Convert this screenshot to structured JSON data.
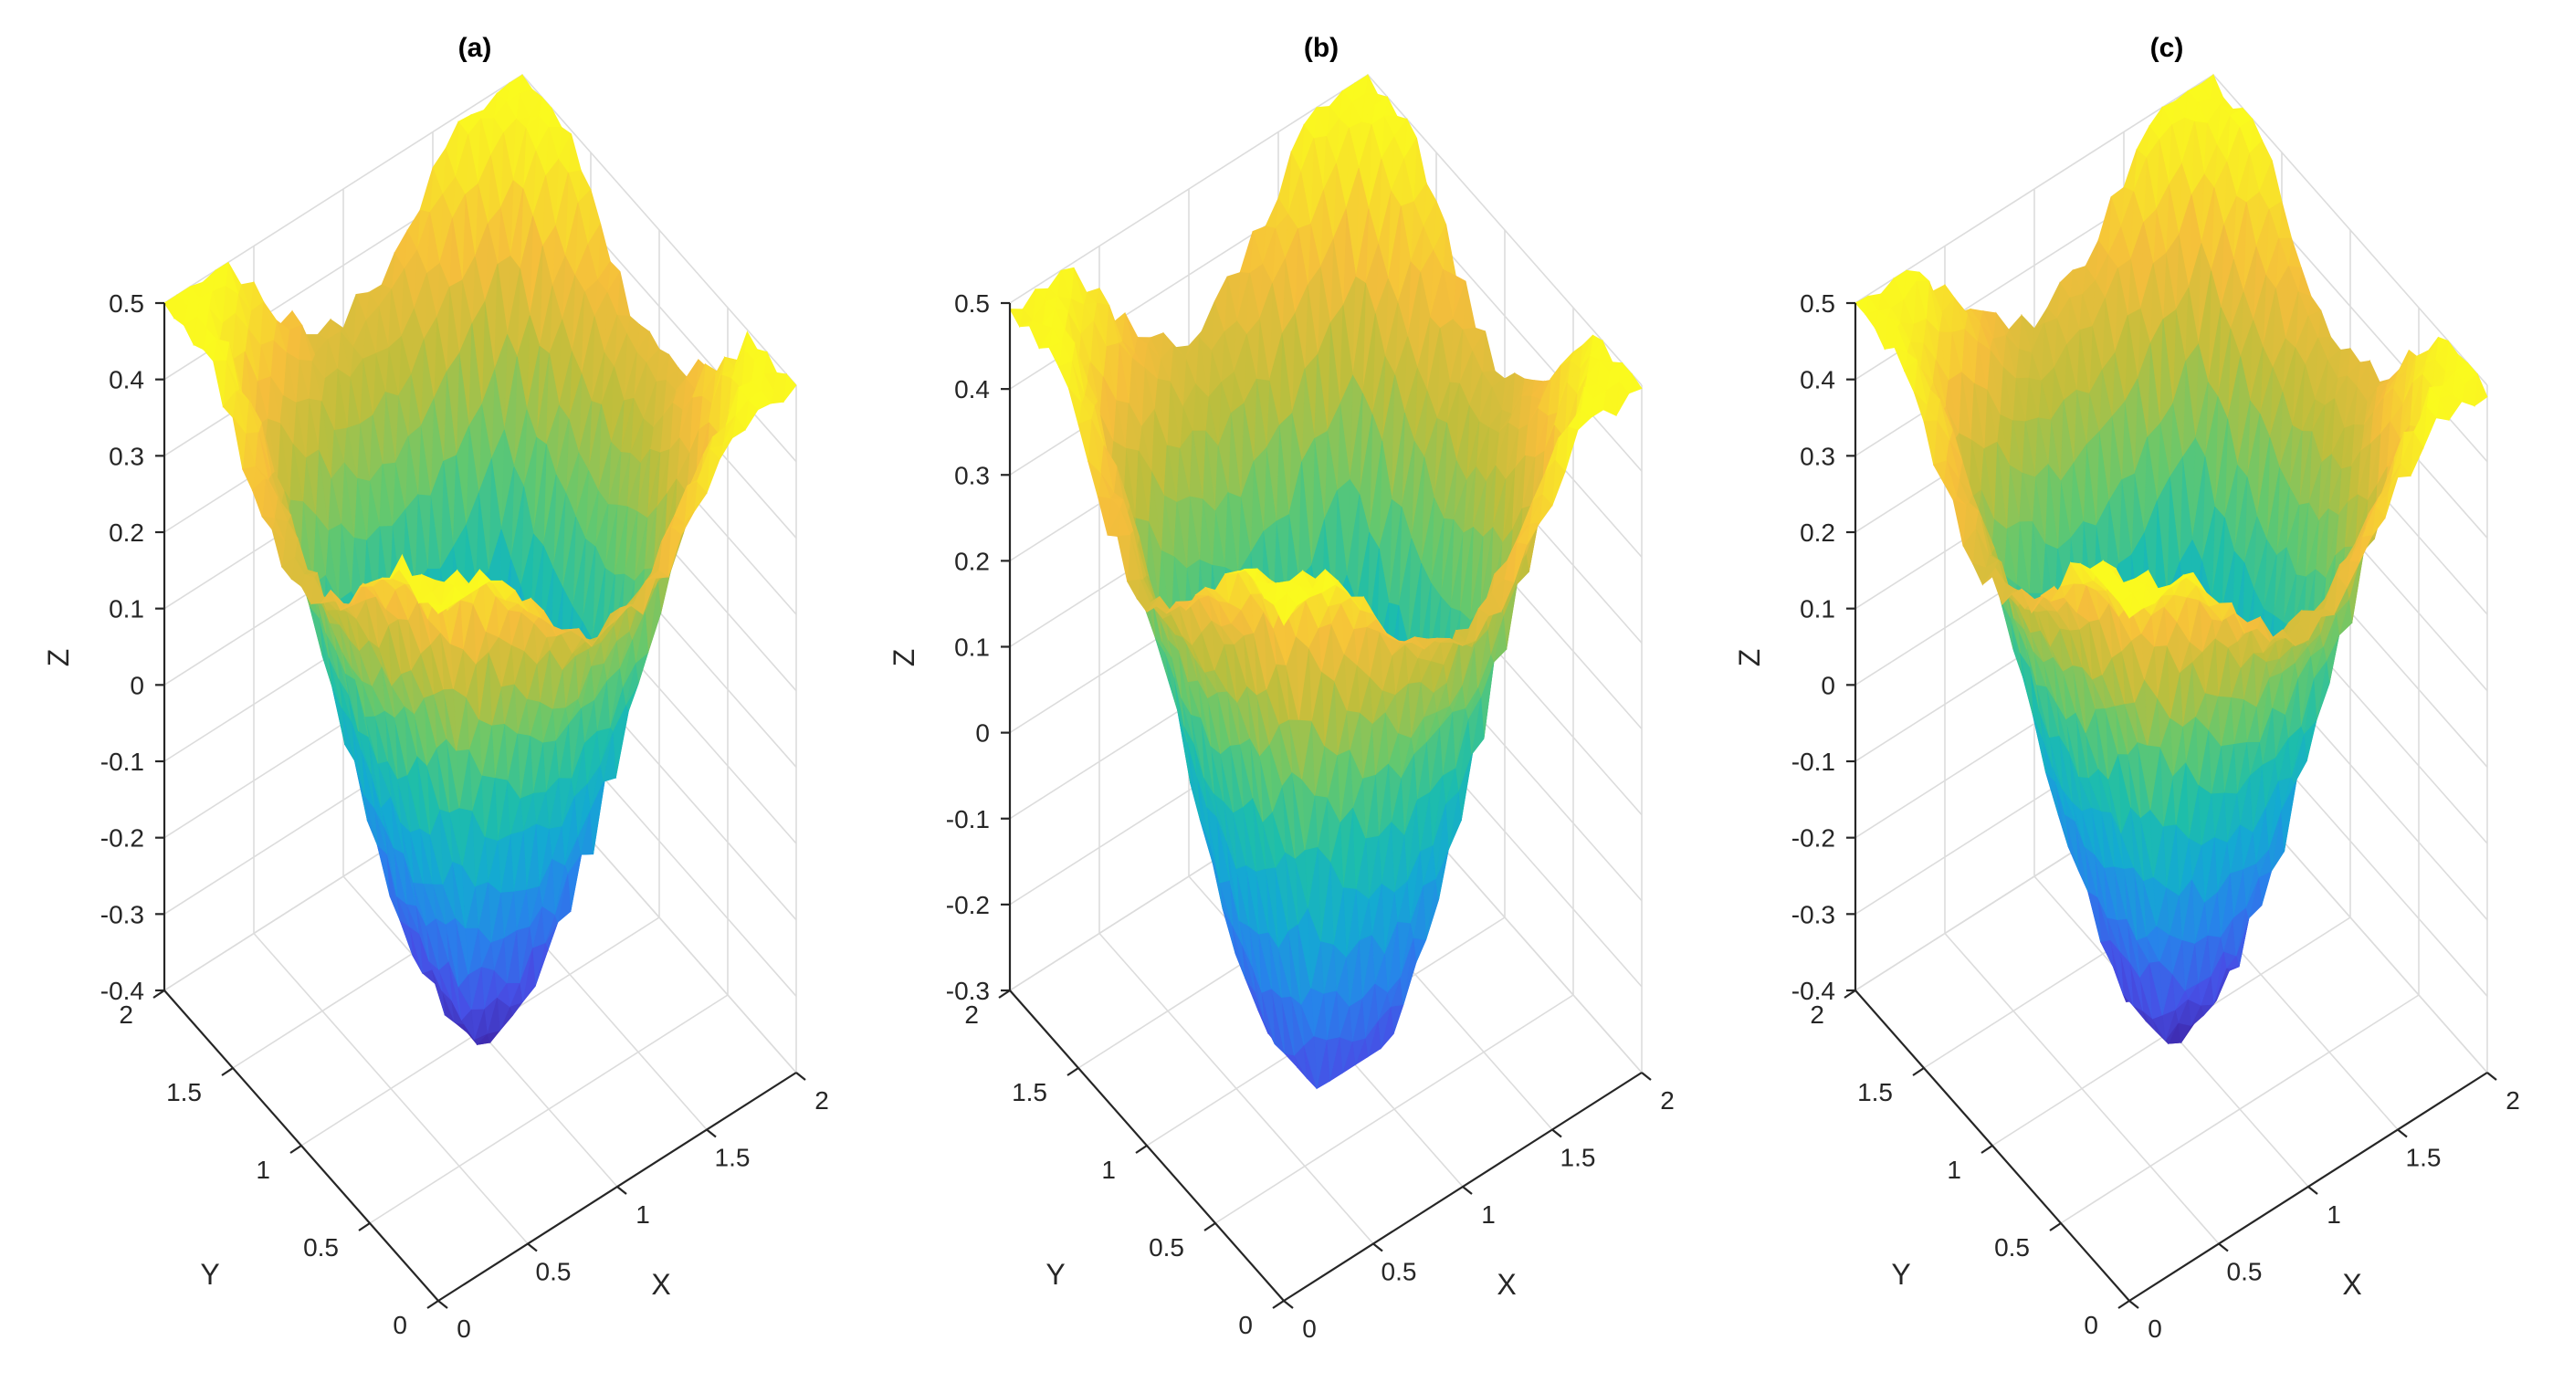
{
  "chart_data": [
    {
      "type": "surface",
      "title": "(a)",
      "xlabel": "X",
      "ylabel": "Y",
      "zlabel": "Z",
      "xlim": [
        0,
        2
      ],
      "ylim": [
        0,
        2
      ],
      "zlim": [
        -0.4,
        0.5
      ],
      "xticks": [
        "0",
        "0.5",
        "1",
        "1.5",
        "2"
      ],
      "yticks": [
        "0",
        "0.5",
        "1",
        "1.5",
        "2"
      ],
      "zticks": [
        "-0.4",
        "-0.3",
        "-0.2",
        "-0.1",
        "0",
        "0.1",
        "0.2",
        "0.3",
        "0.4",
        "0.5"
      ],
      "surface": {
        "center": [
          1,
          1
        ],
        "min_z": -0.4,
        "corner_z": 0.5,
        "edge_mid_z": 0.1,
        "colormap": "parula"
      },
      "grid": true
    },
    {
      "type": "surface",
      "title": "(b)",
      "xlabel": "X",
      "ylabel": "Y",
      "zlabel": "Z",
      "xlim": [
        0,
        2
      ],
      "ylim": [
        0,
        2
      ],
      "zlim": [
        -0.3,
        0.5
      ],
      "xticks": [
        "0",
        "0.5",
        "1",
        "1.5",
        "2"
      ],
      "yticks": [
        "0",
        "0.5",
        "1",
        "1.5",
        "2"
      ],
      "zticks": [
        "-0.3",
        "-0.2",
        "-0.1",
        "0",
        "0.1",
        "0.2",
        "0.3",
        "0.4",
        "0.5"
      ],
      "surface": {
        "center": [
          1,
          1
        ],
        "min_z": -0.4,
        "corner_z": 0.5,
        "edge_mid_z": 0.1,
        "colormap": "parula"
      },
      "grid": true
    },
    {
      "type": "surface",
      "title": "(c)",
      "xlabel": "X",
      "ylabel": "Y",
      "zlabel": "Z",
      "xlim": [
        0,
        2
      ],
      "ylim": [
        0,
        2
      ],
      "zlim": [
        -0.4,
        0.5
      ],
      "xticks": [
        "0",
        "0.5",
        "1",
        "1.5",
        "2"
      ],
      "yticks": [
        "0",
        "0.5",
        "1",
        "1.5",
        "2"
      ],
      "zticks": [
        "-0.4",
        "-0.3",
        "-0.2",
        "-0.1",
        "0",
        "0.1",
        "0.2",
        "0.3",
        "0.4",
        "0.5"
      ],
      "surface": {
        "center": [
          1,
          1
        ],
        "min_z": -0.4,
        "corner_z": 0.5,
        "edge_mid_z": 0.1,
        "colormap": "parula"
      },
      "grid": true
    }
  ]
}
